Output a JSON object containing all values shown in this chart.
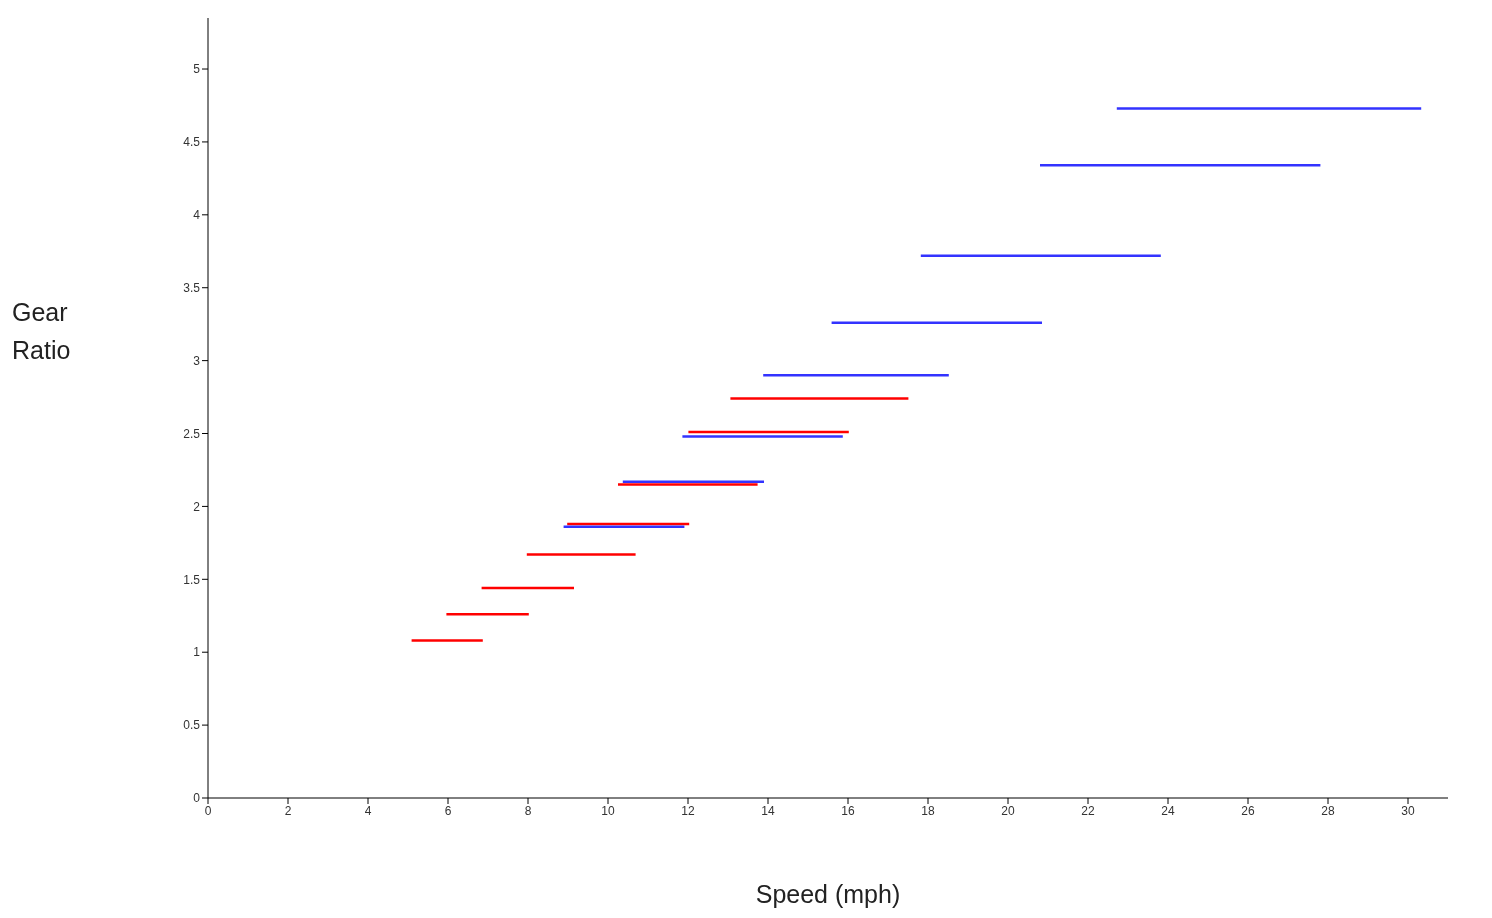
{
  "chart_data": {
    "type": "line",
    "xlabel": "Speed (mph)",
    "ylabel": "Gear Ratio",
    "xlim": [
      0,
      31
    ],
    "ylim": [
      0,
      5.35
    ],
    "xticks": [
      0,
      2,
      4,
      6,
      8,
      10,
      12,
      14,
      16,
      18,
      20,
      22,
      24,
      26,
      28,
      30
    ],
    "yticks": [
      0,
      0.5,
      1,
      1.5,
      2,
      2.5,
      3,
      3.5,
      4,
      4.5,
      5
    ],
    "grid": false,
    "series": [
      {
        "color": "#ff0000",
        "x": [
          5.09,
          6.87
        ],
        "values": [
          1.08,
          1.08
        ]
      },
      {
        "color": "#ff0000",
        "x": [
          5.96,
          8.02
        ],
        "values": [
          1.26,
          1.26
        ]
      },
      {
        "color": "#ff0000",
        "x": [
          6.84,
          9.15
        ],
        "values": [
          1.44,
          1.44
        ]
      },
      {
        "color": "#ff0000",
        "x": [
          7.97,
          10.69
        ],
        "values": [
          1.67,
          1.67
        ]
      },
      {
        "color": "#ff0000",
        "x": [
          8.98,
          12.03
        ],
        "values": [
          1.88,
          1.88
        ]
      },
      {
        "color": "#ff0000",
        "x": [
          10.25,
          13.74
        ],
        "values": [
          2.15,
          2.15
        ]
      },
      {
        "color": "#ff0000",
        "x": [
          12.01,
          16.02
        ],
        "values": [
          2.51,
          2.51
        ]
      },
      {
        "color": "#ff0000",
        "x": [
          13.06,
          17.51
        ],
        "values": [
          2.74,
          2.74
        ]
      },
      {
        "color": "#3333ff",
        "x": [
          8.89,
          11.91
        ],
        "values": [
          1.86,
          1.86
        ]
      },
      {
        "color": "#3333ff",
        "x": [
          10.37,
          13.9
        ],
        "values": [
          2.17,
          2.17
        ]
      },
      {
        "color": "#3333ff",
        "x": [
          11.86,
          15.87
        ],
        "values": [
          2.48,
          2.48
        ]
      },
      {
        "color": "#3333ff",
        "x": [
          13.88,
          18.52
        ],
        "values": [
          2.9,
          2.9
        ]
      },
      {
        "color": "#3333ff",
        "x": [
          15.59,
          20.85
        ],
        "values": [
          3.26,
          3.26
        ]
      },
      {
        "color": "#3333ff",
        "x": [
          17.82,
          23.82
        ],
        "values": [
          3.72,
          3.72
        ]
      },
      {
        "color": "#3333ff",
        "x": [
          20.8,
          27.81
        ],
        "values": [
          4.34,
          4.34
        ]
      },
      {
        "color": "#3333ff",
        "x": [
          22.72,
          30.33
        ],
        "values": [
          4.73,
          4.73
        ]
      }
    ]
  }
}
